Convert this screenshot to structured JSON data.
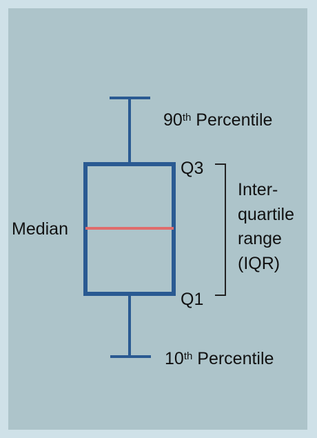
{
  "colors": {
    "page_bg": "#cfe1e8",
    "panel_bg": "#adc4ca",
    "box": "#2a5a92",
    "median": "#e06c6c"
  },
  "labels": {
    "p90_number": "90",
    "p90_suffix": "th",
    "p90_word": " Percentile",
    "p10_number": "10",
    "p10_suffix": "th",
    "p10_word": " Percentile",
    "q3": "Q3",
    "q1": "Q1",
    "median": "Median",
    "iqr_lines": [
      "Inter-",
      "quartile",
      "range",
      "(IQR)"
    ]
  }
}
